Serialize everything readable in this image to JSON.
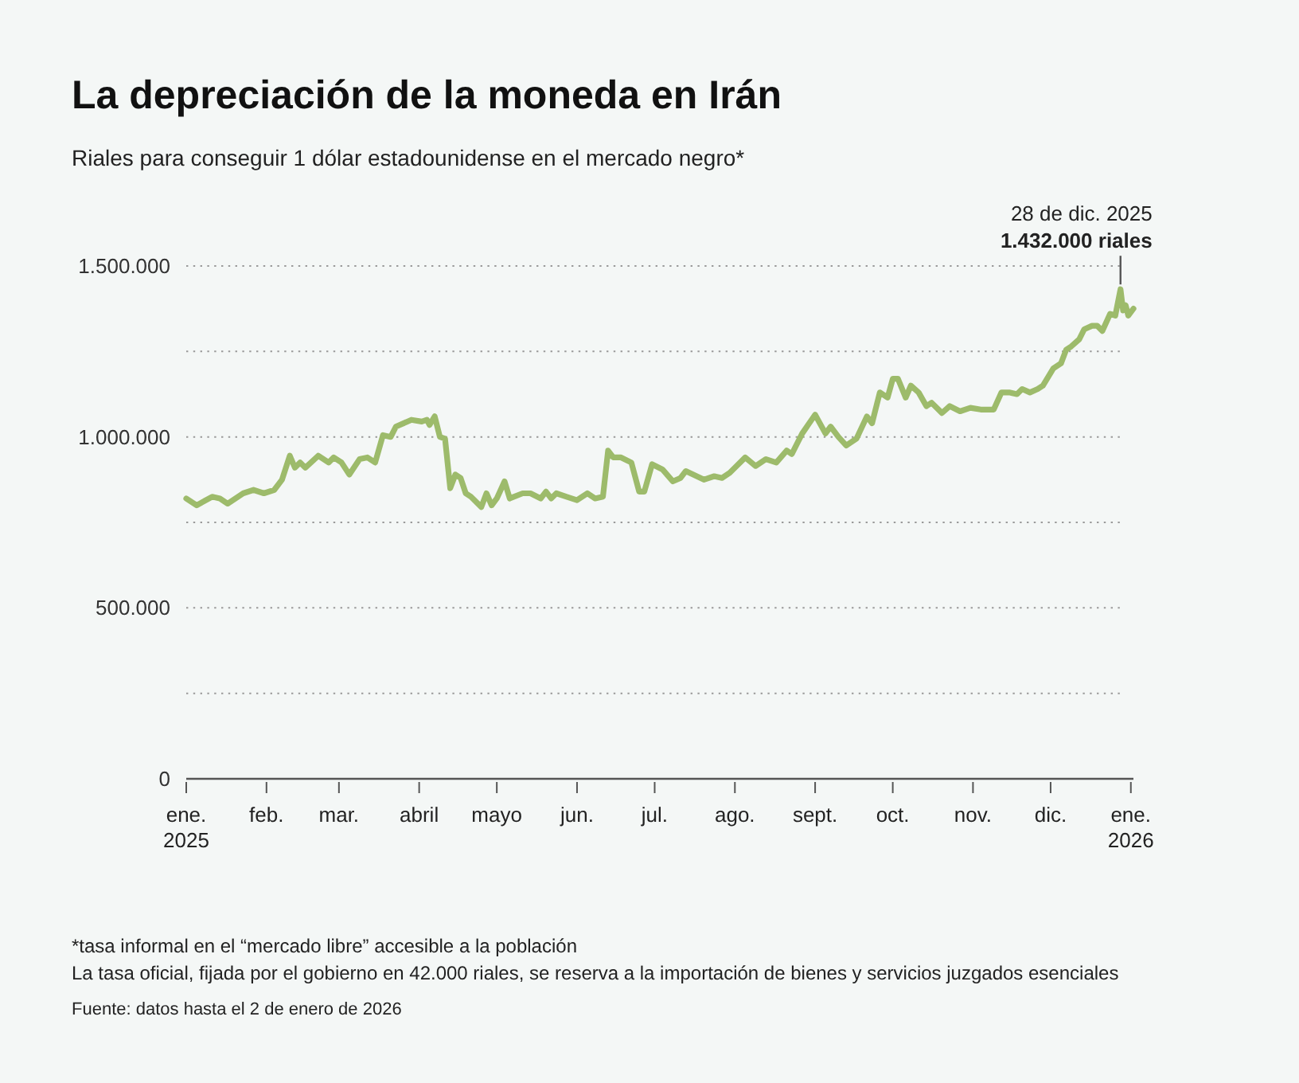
{
  "chart_data": {
    "type": "line",
    "title": "La depreciación de la moneda en Irán",
    "subtitle": "Riales para conseguir 1 dólar estadounidense en el mercado negro*",
    "x": [
      "2025-01-01",
      "2025-01-05",
      "2025-01-11",
      "2025-01-14",
      "2025-01-17",
      "2025-01-23",
      "2025-01-27",
      "2025-01-31",
      "2025-02-04",
      "2025-02-07",
      "2025-02-10",
      "2025-02-12",
      "2025-02-14",
      "2025-02-16",
      "2025-02-21",
      "2025-02-25",
      "2025-02-27",
      "2025-03-02",
      "2025-03-05",
      "2025-03-09",
      "2025-03-12",
      "2025-03-15",
      "2025-03-18",
      "2025-03-21",
      "2025-03-23",
      "2025-03-29",
      "2025-04-02",
      "2025-04-04",
      "2025-04-05",
      "2025-04-07",
      "2025-04-09",
      "2025-04-11",
      "2025-04-13",
      "2025-04-15",
      "2025-04-17",
      "2025-04-19",
      "2025-04-21",
      "2025-04-25",
      "2025-04-27",
      "2025-04-29",
      "2025-05-01",
      "2025-05-04",
      "2025-05-06",
      "2025-05-11",
      "2025-05-14",
      "2025-05-18",
      "2025-05-20",
      "2025-05-22",
      "2025-05-24",
      "2025-05-28",
      "2025-06-01",
      "2025-06-05",
      "2025-06-08",
      "2025-06-11",
      "2025-06-13",
      "2025-06-15",
      "2025-06-18",
      "2025-06-22",
      "2025-06-25",
      "2025-06-27",
      "2025-06-30",
      "2025-07-04",
      "2025-07-08",
      "2025-07-11",
      "2025-07-13",
      "2025-07-20",
      "2025-07-24",
      "2025-07-27",
      "2025-07-30",
      "2025-08-05",
      "2025-08-09",
      "2025-08-13",
      "2025-08-17",
      "2025-08-21",
      "2025-08-23",
      "2025-08-27",
      "2025-09-01",
      "2025-09-05",
      "2025-09-07",
      "2025-09-10",
      "2025-09-13",
      "2025-09-17",
      "2025-09-21",
      "2025-09-23",
      "2025-09-26",
      "2025-09-29",
      "2025-10-01",
      "2025-10-03",
      "2025-10-06",
      "2025-10-08",
      "2025-10-11",
      "2025-10-14",
      "2025-10-16",
      "2025-10-20",
      "2025-10-23",
      "2025-10-27",
      "2025-10-31",
      "2025-11-04",
      "2025-11-09",
      "2025-11-12",
      "2025-11-15",
      "2025-11-18",
      "2025-11-20",
      "2025-11-23",
      "2025-11-26",
      "2025-11-28",
      "2025-12-02",
      "2025-12-05",
      "2025-12-07",
      "2025-12-09",
      "2025-12-12",
      "2025-12-14",
      "2025-12-17",
      "2025-12-19",
      "2025-12-21",
      "2025-12-24",
      "2025-12-26",
      "2025-12-28",
      "2025-12-29",
      "2025-12-30",
      "2025-12-31",
      "2026-01-02"
    ],
    "values": [
      820000,
      800000,
      825000,
      820000,
      805000,
      835000,
      845000,
      835000,
      845000,
      875000,
      945000,
      910000,
      925000,
      910000,
      945000,
      925000,
      940000,
      925000,
      890000,
      935000,
      940000,
      925000,
      1005000,
      1000000,
      1030000,
      1050000,
      1045000,
      1050000,
      1035000,
      1060000,
      1000000,
      995000,
      850000,
      890000,
      880000,
      835000,
      825000,
      795000,
      835000,
      800000,
      820000,
      870000,
      820000,
      835000,
      835000,
      820000,
      840000,
      820000,
      835000,
      825000,
      815000,
      835000,
      820000,
      825000,
      960000,
      940000,
      940000,
      925000,
      840000,
      840000,
      920000,
      905000,
      870000,
      880000,
      900000,
      875000,
      885000,
      880000,
      895000,
      940000,
      915000,
      935000,
      925000,
      960000,
      950000,
      1010000,
      1065000,
      1010000,
      1030000,
      1000000,
      975000,
      995000,
      1060000,
      1040000,
      1130000,
      1115000,
      1170000,
      1170000,
      1115000,
      1150000,
      1130000,
      1090000,
      1100000,
      1070000,
      1090000,
      1075000,
      1085000,
      1080000,
      1080000,
      1130000,
      1130000,
      1125000,
      1140000,
      1130000,
      1140000,
      1150000,
      1200000,
      1215000,
      1255000,
      1265000,
      1285000,
      1315000,
      1325000,
      1325000,
      1310000,
      1360000,
      1355000,
      1432000,
      1370000,
      1385000,
      1355000,
      1375000
    ],
    "color": "#9dbb6b",
    "xlim": [
      "2025-01-01",
      "2026-01-02"
    ],
    "xticks": [
      {
        "value": "2025-01-01",
        "label": "ene.\n2025"
      },
      {
        "value": "2025-02-01",
        "label": "feb."
      },
      {
        "value": "2025-03-01",
        "label": "mar."
      },
      {
        "value": "2025-04-01",
        "label": "abril"
      },
      {
        "value": "2025-05-01",
        "label": "mayo"
      },
      {
        "value": "2025-06-01",
        "label": "jun."
      },
      {
        "value": "2025-07-01",
        "label": "jul."
      },
      {
        "value": "2025-08-01",
        "label": "ago."
      },
      {
        "value": "2025-09-01",
        "label": "sept."
      },
      {
        "value": "2025-10-01",
        "label": "oct."
      },
      {
        "value": "2025-11-01",
        "label": "nov."
      },
      {
        "value": "2025-12-01",
        "label": "dic."
      },
      {
        "value": "2026-01-01",
        "label": "ene.\n2026"
      }
    ],
    "ylim": [
      0,
      1500000
    ],
    "yticks": [
      {
        "value": 0,
        "label": "0"
      },
      {
        "value": 250000,
        "label": null
      },
      {
        "value": 500000,
        "label": "500.000"
      },
      {
        "value": 750000,
        "label": null
      },
      {
        "value": 1000000,
        "label": "1.000.000"
      },
      {
        "value": 1250000,
        "label": null
      },
      {
        "value": 1500000,
        "label": "1.500.000"
      }
    ],
    "grid": "y",
    "annotations": [
      {
        "text": "28 de dic. 2025\n1.432.000 riales",
        "x": "2025-12-28",
        "y": 1432000
      },
      "*tasa informal en el “mercado libre” accesible a la población",
      "La tasa oficial, fijada por el gobierno en 42.000 riales, se reserva a la importación de bienes y servicios juzgados esenciales",
      "Fuente: datos hasta el 2 de enero de 2026"
    ]
  }
}
